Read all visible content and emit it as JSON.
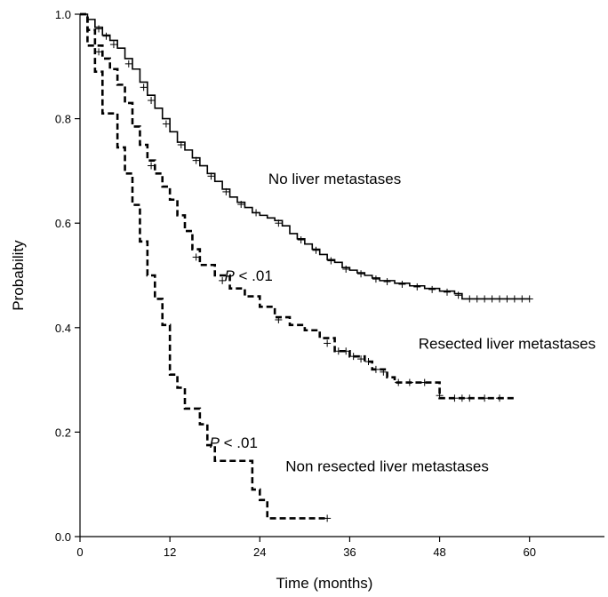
{
  "chart_data": {
    "type": "line",
    "xlabel": "Time (months)",
    "ylabel": "Probability",
    "xlim": [
      0,
      70
    ],
    "ylim": [
      0,
      1.0
    ],
    "x_ticks": [
      0,
      12,
      24,
      36,
      48,
      60
    ],
    "x_tick_labels": [
      "0",
      "12",
      "24",
      "36",
      "48",
      "60"
    ],
    "y_ticks": [
      0,
      0.2,
      0.4,
      0.6,
      0.8,
      1.0
    ],
    "y_tick_labels": [
      "0.0",
      "0.2",
      "0.4",
      "0.6",
      "0.8",
      "1.0"
    ],
    "grid": false,
    "series": [
      {
        "name": "No liver metastases",
        "style": "solid",
        "color": "#000000",
        "steps": [
          [
            0,
            1.0
          ],
          [
            1,
            0.99
          ],
          [
            2,
            0.975
          ],
          [
            3,
            0.96
          ],
          [
            4,
            0.95
          ],
          [
            5,
            0.935
          ],
          [
            6,
            0.915
          ],
          [
            7,
            0.895
          ],
          [
            8,
            0.87
          ],
          [
            9,
            0.845
          ],
          [
            10,
            0.82
          ],
          [
            11,
            0.8
          ],
          [
            12,
            0.775
          ],
          [
            13,
            0.755
          ],
          [
            14,
            0.74
          ],
          [
            15,
            0.725
          ],
          [
            16,
            0.71
          ],
          [
            17,
            0.695
          ],
          [
            18,
            0.68
          ],
          [
            19,
            0.665
          ],
          [
            20,
            0.65
          ],
          [
            21,
            0.64
          ],
          [
            22,
            0.63
          ],
          [
            23,
            0.62
          ],
          [
            24,
            0.615
          ],
          [
            25,
            0.61
          ],
          [
            26,
            0.605
          ],
          [
            27,
            0.595
          ],
          [
            28,
            0.58
          ],
          [
            29,
            0.57
          ],
          [
            30,
            0.56
          ],
          [
            31,
            0.55
          ],
          [
            32,
            0.54
          ],
          [
            33,
            0.53
          ],
          [
            34,
            0.525
          ],
          [
            35,
            0.515
          ],
          [
            36,
            0.51
          ],
          [
            37,
            0.505
          ],
          [
            38,
            0.5
          ],
          [
            39,
            0.495
          ],
          [
            40,
            0.49
          ],
          [
            42,
            0.485
          ],
          [
            44,
            0.48
          ],
          [
            46,
            0.475
          ],
          [
            48,
            0.47
          ],
          [
            50,
            0.465
          ],
          [
            51,
            0.455
          ],
          [
            60,
            0.455
          ]
        ],
        "censors": [
          [
            2.5,
            0.972
          ],
          [
            3.5,
            0.958
          ],
          [
            4.5,
            0.942
          ],
          [
            6.5,
            0.905
          ],
          [
            8.5,
            0.86
          ],
          [
            9.5,
            0.835
          ],
          [
            11.5,
            0.79
          ],
          [
            13.5,
            0.75
          ],
          [
            15.5,
            0.72
          ],
          [
            17.5,
            0.69
          ],
          [
            19.5,
            0.66
          ],
          [
            21.5,
            0.636
          ],
          [
            23.5,
            0.62
          ],
          [
            26.5,
            0.6
          ],
          [
            29.5,
            0.568
          ],
          [
            31.5,
            0.548
          ],
          [
            33.5,
            0.528
          ],
          [
            35.5,
            0.512
          ],
          [
            37.5,
            0.503
          ],
          [
            39.5,
            0.493
          ],
          [
            41,
            0.488
          ],
          [
            43,
            0.483
          ],
          [
            45,
            0.478
          ],
          [
            47,
            0.473
          ],
          [
            49,
            0.468
          ],
          [
            50.5,
            0.462
          ],
          [
            52,
            0.455
          ],
          [
            53,
            0.455
          ],
          [
            54,
            0.455
          ],
          [
            55,
            0.455
          ],
          [
            56,
            0.455
          ],
          [
            57,
            0.455
          ],
          [
            58,
            0.455
          ],
          [
            59,
            0.455
          ],
          [
            60,
            0.455
          ]
        ]
      },
      {
        "name": "Resected liver metastases",
        "style": "dashed",
        "color": "#000000",
        "steps": [
          [
            0,
            1.0
          ],
          [
            1,
            0.97
          ],
          [
            2,
            0.94
          ],
          [
            3,
            0.915
          ],
          [
            4,
            0.895
          ],
          [
            5,
            0.865
          ],
          [
            6,
            0.83
          ],
          [
            7,
            0.785
          ],
          [
            8,
            0.75
          ],
          [
            9,
            0.72
          ],
          [
            10,
            0.695
          ],
          [
            11,
            0.67
          ],
          [
            12,
            0.645
          ],
          [
            13,
            0.615
          ],
          [
            14,
            0.585
          ],
          [
            15,
            0.55
          ],
          [
            16,
            0.52
          ],
          [
            18,
            0.5
          ],
          [
            20,
            0.475
          ],
          [
            22,
            0.46
          ],
          [
            24,
            0.44
          ],
          [
            26,
            0.42
          ],
          [
            28,
            0.405
          ],
          [
            30,
            0.395
          ],
          [
            32,
            0.38
          ],
          [
            34,
            0.355
          ],
          [
            36,
            0.345
          ],
          [
            38,
            0.335
          ],
          [
            39,
            0.32
          ],
          [
            41,
            0.305
          ],
          [
            42,
            0.295
          ],
          [
            48,
            0.265
          ],
          [
            58,
            0.265
          ]
        ],
        "censors": [
          [
            2.5,
            0.928
          ],
          [
            9.5,
            0.71
          ],
          [
            15.5,
            0.535
          ],
          [
            19,
            0.49
          ],
          [
            26.5,
            0.415
          ],
          [
            33,
            0.37
          ],
          [
            34.5,
            0.355
          ],
          [
            35.5,
            0.355
          ],
          [
            36.5,
            0.345
          ],
          [
            37.5,
            0.34
          ],
          [
            38.5,
            0.335
          ],
          [
            39.5,
            0.32
          ],
          [
            40.5,
            0.315
          ],
          [
            42.5,
            0.295
          ],
          [
            44,
            0.295
          ],
          [
            46,
            0.295
          ],
          [
            48,
            0.27
          ],
          [
            50,
            0.265
          ],
          [
            51,
            0.265
          ],
          [
            52,
            0.265
          ],
          [
            54,
            0.265
          ],
          [
            56,
            0.265
          ]
        ]
      },
      {
        "name": "Non resected liver metastases",
        "style": "dashed",
        "color": "#000000",
        "steps": [
          [
            0,
            1.0
          ],
          [
            1,
            0.94
          ],
          [
            2,
            0.89
          ],
          [
            3,
            0.81
          ],
          [
            5,
            0.745
          ],
          [
            6,
            0.695
          ],
          [
            7,
            0.635
          ],
          [
            8,
            0.565
          ],
          [
            9,
            0.5
          ],
          [
            10,
            0.455
          ],
          [
            11,
            0.405
          ],
          [
            12,
            0.31
          ],
          [
            13,
            0.285
          ],
          [
            14,
            0.245
          ],
          [
            16,
            0.215
          ],
          [
            17,
            0.175
          ],
          [
            18,
            0.145
          ],
          [
            23,
            0.09
          ],
          [
            24,
            0.07
          ],
          [
            25,
            0.035
          ],
          [
            33,
            0.035
          ]
        ],
        "censors": [
          [
            33,
            0.035
          ]
        ]
      }
    ],
    "annotations": [
      {
        "text": "No liver metastases",
        "x": 34,
        "y": 0.675
      },
      {
        "text": "Resected liver metastases",
        "x": 57,
        "y": 0.36
      },
      {
        "text": "Non resected liver metastases",
        "x": 41,
        "y": 0.125
      },
      {
        "text_italic": "P",
        "text_rest": " < .01",
        "x": 22.5,
        "y": 0.49
      },
      {
        "text_italic": "P",
        "text_rest": " < .01",
        "x": 20.5,
        "y": 0.17
      }
    ]
  }
}
